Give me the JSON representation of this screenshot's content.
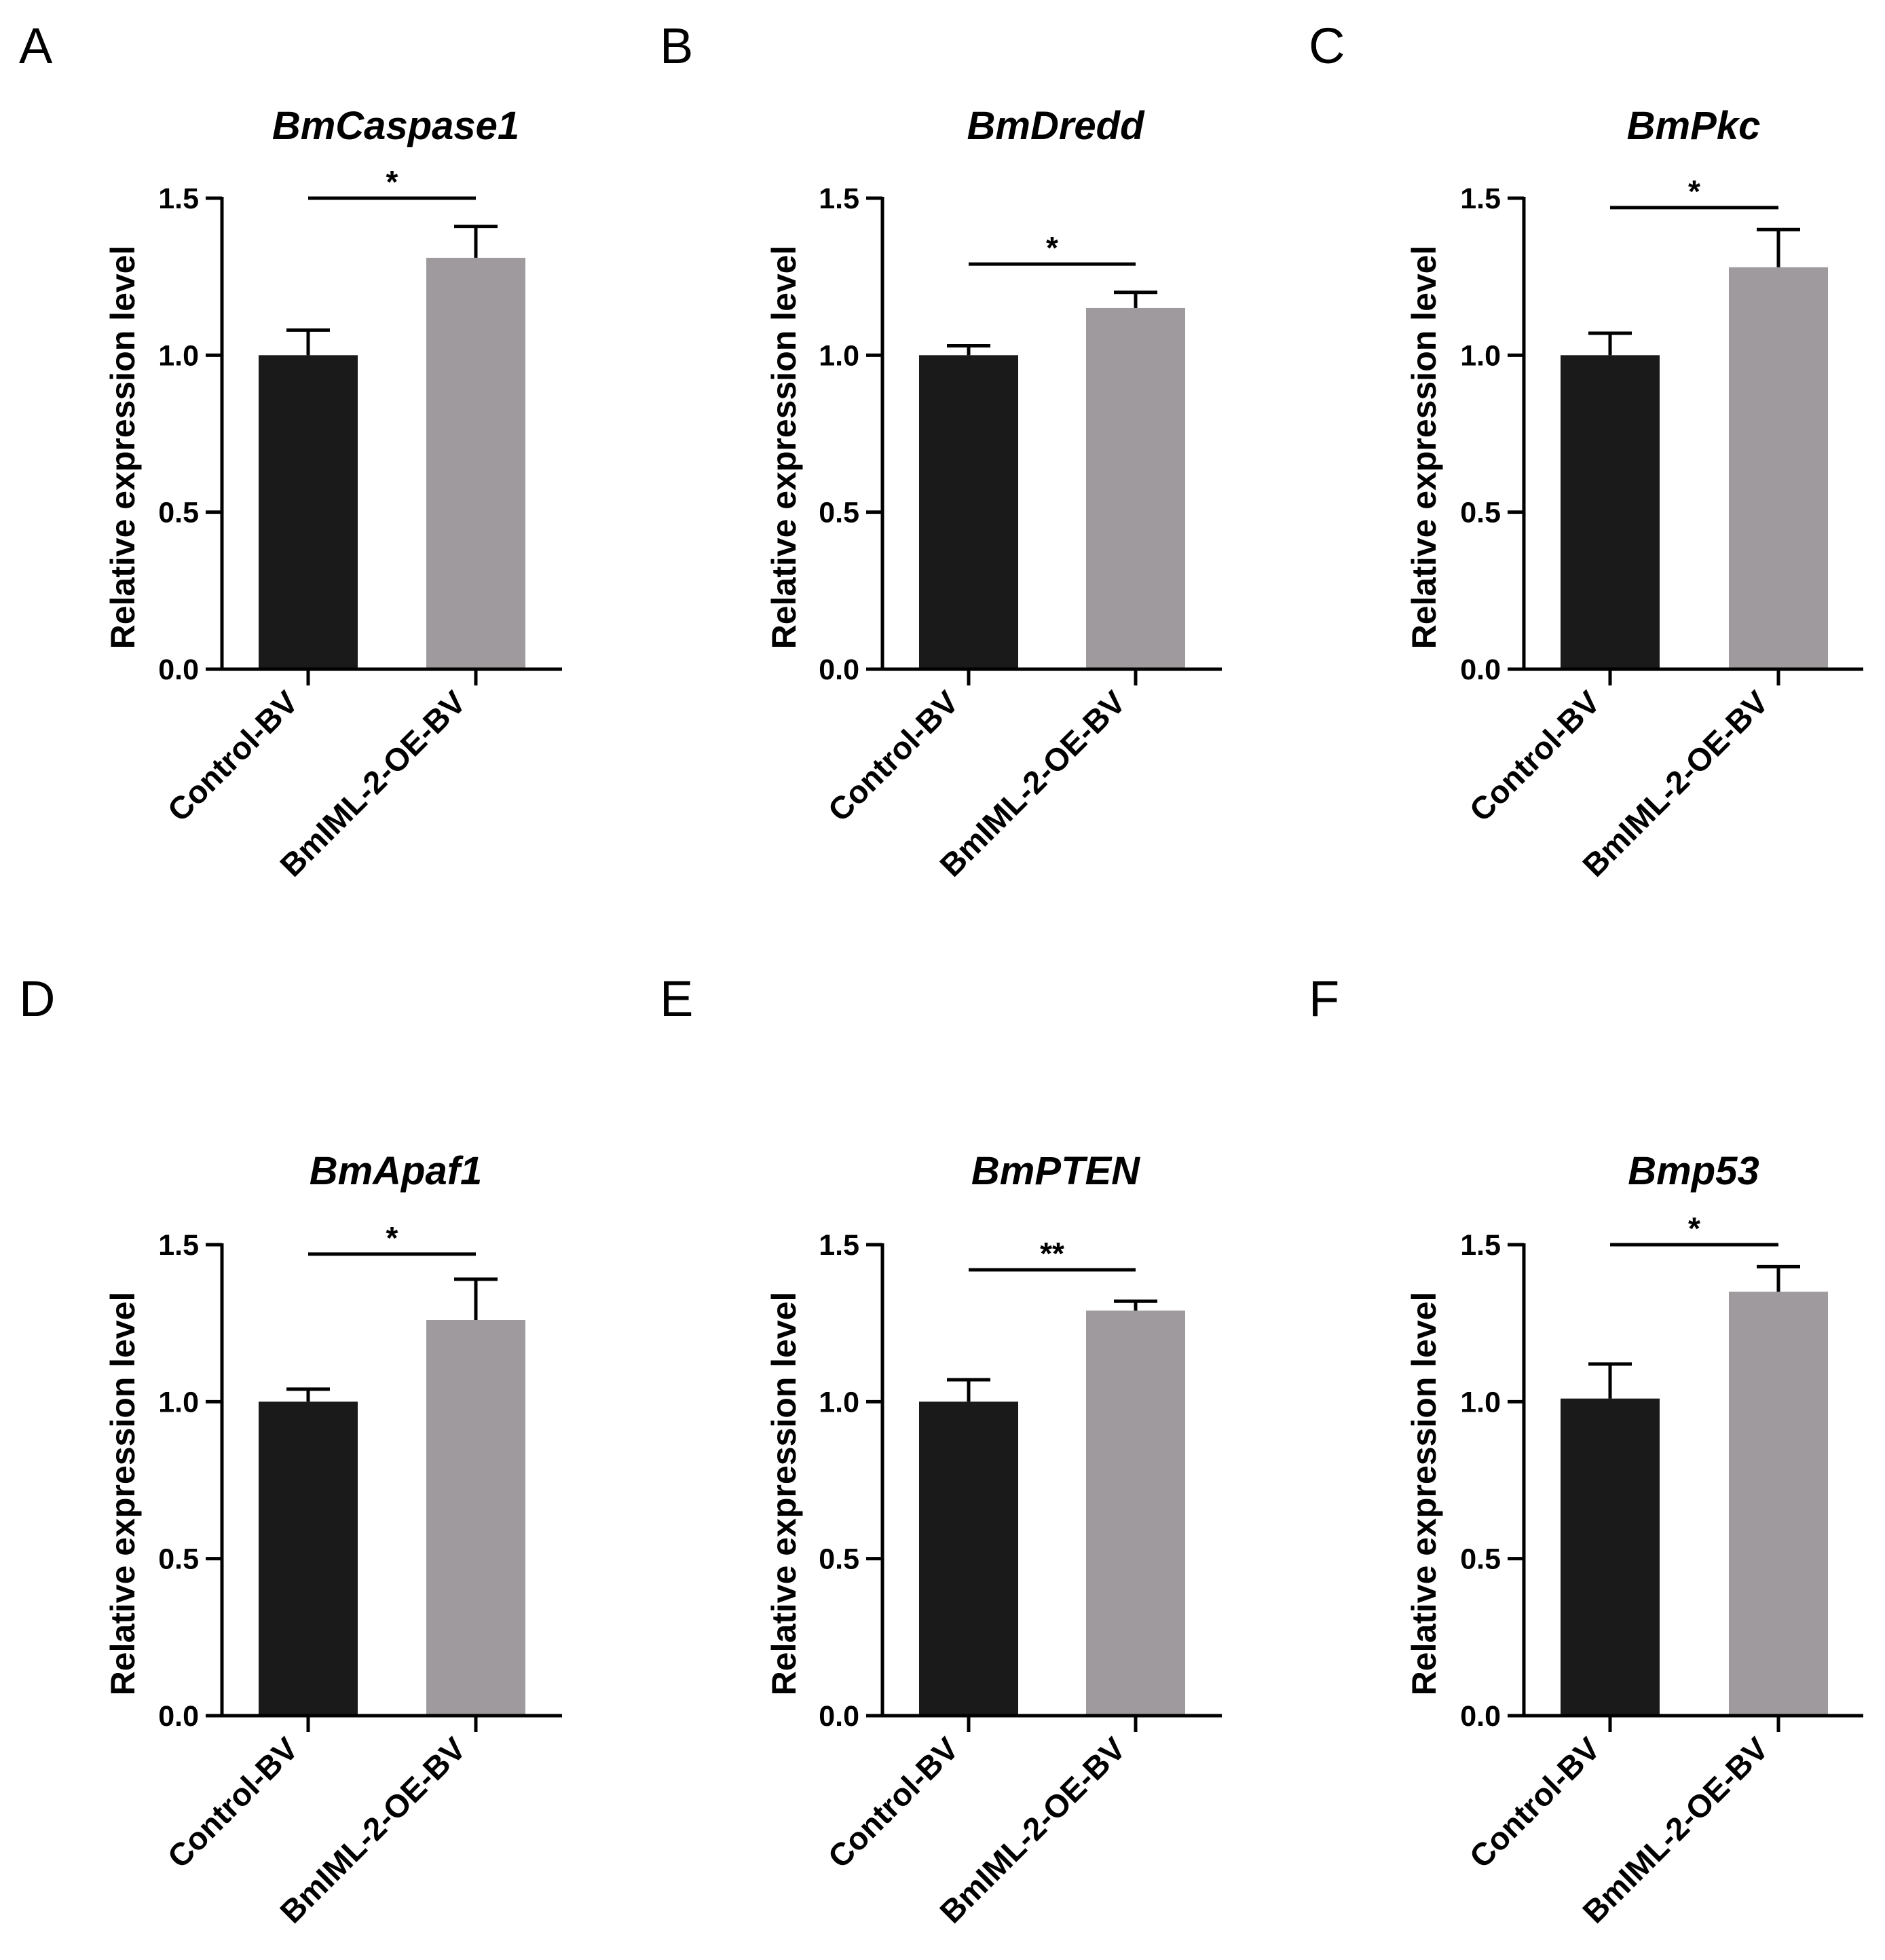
{
  "chart_data": [
    {
      "panel": "A",
      "type": "bar",
      "title": "BmCaspase1",
      "ylabel": "Relative expression level",
      "ylim": [
        0,
        1.5
      ],
      "yticks": [
        "0.0",
        "0.5",
        "1.0",
        "1.5"
      ],
      "categories": [
        "Control-BV",
        "BmIML-2-OE-BV"
      ],
      "values": [
        1.0,
        1.31
      ],
      "errors": [
        0.08,
        0.1
      ],
      "colors": [
        "#1a1a1a",
        "#9e9a9d"
      ],
      "significance": "*",
      "sig_level": 1.5
    },
    {
      "panel": "B",
      "type": "bar",
      "title": "BmDredd",
      "ylabel": "Relative expression level",
      "ylim": [
        0,
        1.5
      ],
      "yticks": [
        "0.0",
        "0.5",
        "1.0",
        "1.5"
      ],
      "categories": [
        "Control-BV",
        "BmIML-2-OE-BV"
      ],
      "values": [
        1.0,
        1.15
      ],
      "errors": [
        0.03,
        0.05
      ],
      "colors": [
        "#1a1a1a",
        "#9e9a9d"
      ],
      "significance": "*",
      "sig_level": 1.29
    },
    {
      "panel": "C",
      "type": "bar",
      "title": "BmPkc",
      "ylabel": "Relative expression level",
      "ylim": [
        0,
        1.5
      ],
      "yticks": [
        "0.0",
        "0.5",
        "1.0",
        "1.5"
      ],
      "categories": [
        "Control-BV",
        "BmIML-2-OE-BV"
      ],
      "values": [
        1.0,
        1.28
      ],
      "errors": [
        0.07,
        0.12
      ],
      "colors": [
        "#1a1a1a",
        "#9e9a9d"
      ],
      "significance": "*",
      "sig_level": 1.47
    },
    {
      "panel": "D",
      "type": "bar",
      "title": "BmApaf1",
      "ylabel": "Relative expression level",
      "ylim": [
        0,
        1.5
      ],
      "yticks": [
        "0.0",
        "0.5",
        "1.0",
        "1.5"
      ],
      "categories": [
        "Control-BV",
        "BmIML-2-OE-BV"
      ],
      "values": [
        1.0,
        1.26
      ],
      "errors": [
        0.04,
        0.13
      ],
      "colors": [
        "#1a1a1a",
        "#9e9a9d"
      ],
      "significance": "*",
      "sig_level": 1.47
    },
    {
      "panel": "E",
      "type": "bar",
      "title": "BmPTEN",
      "ylabel": "Relative expression level",
      "ylim": [
        0,
        1.5
      ],
      "yticks": [
        "0.0",
        "0.5",
        "1.0",
        "1.5"
      ],
      "categories": [
        "Control-BV",
        "BmIML-2-OE-BV"
      ],
      "values": [
        1.0,
        1.29
      ],
      "errors": [
        0.07,
        0.03
      ],
      "colors": [
        "#1a1a1a",
        "#9e9a9d"
      ],
      "significance": "**",
      "sig_level": 1.42
    },
    {
      "panel": "F",
      "type": "bar",
      "title": "Bmp53",
      "ylabel": "Relative expression level",
      "ylim": [
        0,
        1.5
      ],
      "yticks": [
        "0.0",
        "0.5",
        "1.0",
        "1.5"
      ],
      "categories": [
        "Control-BV",
        "BmIML-2-OE-BV"
      ],
      "values": [
        1.01,
        1.35
      ],
      "errors": [
        0.11,
        0.08
      ],
      "colors": [
        "#1a1a1a",
        "#9e9a9d"
      ],
      "significance": "*",
      "sig_level": 1.5
    }
  ]
}
